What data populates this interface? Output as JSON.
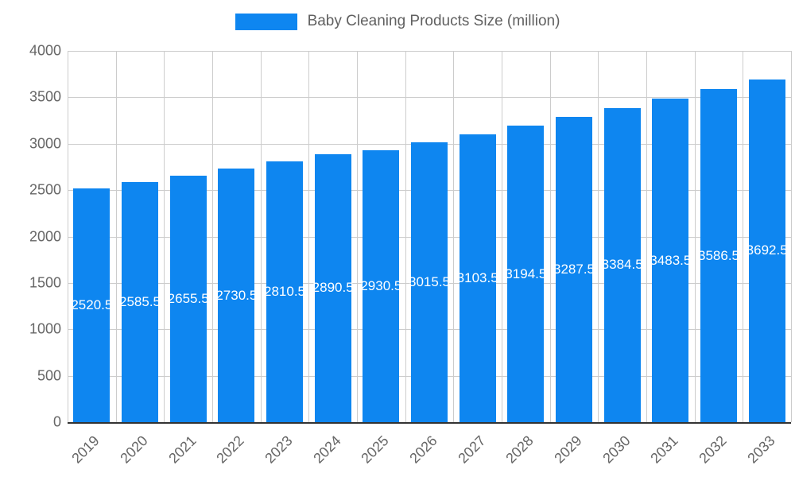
{
  "chart_data": {
    "type": "bar",
    "title": "Baby Cleaning Products Size (million)",
    "categories": [
      "2019",
      "2020",
      "2021",
      "2022",
      "2023",
      "2024",
      "2025",
      "2026",
      "2027",
      "2028",
      "2029",
      "2030",
      "2031",
      "2032",
      "2033"
    ],
    "values": [
      2520.5,
      2585.5,
      2655.5,
      2730.5,
      2810.5,
      2890.5,
      2930.5,
      3015.5,
      3103.5,
      3194.5,
      3287.5,
      3384.5,
      3483.5,
      3586.5,
      3692.5
    ],
    "value_labels": [
      "2520.5",
      "2585.5",
      "2655.5",
      "2730.5",
      "2810.5",
      "2890.5",
      "2930.5",
      "3015.5",
      "3103.5",
      "3194.5",
      "3287.5",
      "3384.5",
      "3483.5",
      "3586.5",
      "3692.5"
    ],
    "xlabel": "",
    "ylabel": "",
    "ylim": [
      0,
      4000
    ],
    "yticks": [
      0,
      500,
      1000,
      1500,
      2000,
      2500,
      3000,
      3500,
      4000
    ],
    "grid": true,
    "legend_position": "top",
    "colors": {
      "bar": "#0e86f0",
      "grid": "#cccccc",
      "axis_text": "#666666",
      "axis_line": "#333333",
      "legend_text": "#616161",
      "value_label_text": "#ffffff"
    }
  }
}
